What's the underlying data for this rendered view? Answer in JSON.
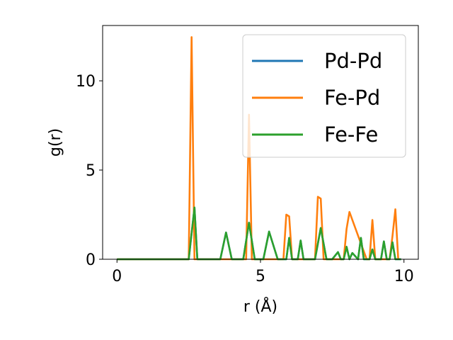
{
  "chart_data": {
    "type": "line",
    "title": "",
    "xlabel": "r (Å)",
    "ylabel": "g(r)",
    "xlim": [
      -0.5,
      10.5
    ],
    "ylim": [
      0,
      13.1
    ],
    "xticks": [
      0,
      5,
      10
    ],
    "yticks": [
      0,
      5,
      10
    ],
    "grid": false,
    "legend_position": "top-right",
    "series": [
      {
        "name": "Pd-Pd",
        "color": "#1f77b4",
        "x": [
          0,
          2.5,
          2.7,
          2.8,
          3.6,
          3.8,
          4.0,
          4.4,
          4.6,
          4.8,
          5.1,
          5.3,
          5.6,
          5.9,
          6.0,
          6.1,
          6.3,
          6.4,
          6.5,
          6.9,
          7.1,
          7.3,
          7.5,
          7.7,
          7.8,
          7.9,
          8.0,
          8.1,
          8.2,
          8.4,
          8.5,
          8.6,
          8.8,
          8.9,
          9.0,
          9.2,
          9.3,
          9.4,
          9.5,
          9.6,
          9.7,
          9.9
        ],
        "y": [
          0,
          0,
          2.9,
          0,
          0,
          1.5,
          0,
          0,
          2.05,
          0,
          0,
          1.55,
          0,
          0,
          1.2,
          0,
          0,
          1.05,
          0,
          0,
          1.75,
          0,
          0,
          0.4,
          0,
          0,
          0.7,
          0,
          0.35,
          0,
          1.2,
          0,
          0,
          0.55,
          0,
          0,
          1.0,
          0,
          0,
          0.95,
          0,
          0
        ]
      },
      {
        "name": "Fe-Pd",
        "color": "#ff7f0e",
        "x": [
          0,
          2.5,
          2.6,
          2.7,
          4.4,
          4.5,
          4.6,
          4.7,
          5.8,
          5.9,
          6.0,
          6.1,
          6.9,
          7.0,
          7.1,
          7.2,
          7.8,
          7.9,
          8.0,
          8.1,
          8.7,
          8.8,
          8.9,
          9.0,
          9.4,
          9.5,
          9.6,
          9.7,
          9.8
        ],
        "y": [
          0,
          0,
          12.45,
          0,
          0,
          0,
          8.1,
          0,
          0,
          2.5,
          2.4,
          0,
          0,
          3.5,
          3.4,
          0,
          0,
          0,
          1.7,
          2.65,
          0,
          0,
          2.2,
          0,
          0,
          0,
          1.3,
          2.8,
          0
        ]
      },
      {
        "name": "Fe-Fe",
        "color": "#2ca02c",
        "x": [
          0,
          2.5,
          2.7,
          2.8,
          3.6,
          3.8,
          4.0,
          4.4,
          4.6,
          4.8,
          5.1,
          5.3,
          5.6,
          5.9,
          6.0,
          6.1,
          6.3,
          6.4,
          6.5,
          6.9,
          7.1,
          7.3,
          7.5,
          7.7,
          7.8,
          7.9,
          8.0,
          8.1,
          8.2,
          8.4,
          8.5,
          8.6,
          8.8,
          8.9,
          9.0,
          9.2,
          9.3,
          9.4,
          9.5,
          9.6,
          9.7,
          9.9
        ],
        "y": [
          0,
          0,
          2.9,
          0,
          0,
          1.5,
          0,
          0,
          2.05,
          0,
          0,
          1.55,
          0,
          0,
          1.2,
          0,
          0,
          1.05,
          0,
          0,
          1.75,
          0,
          0,
          0.4,
          0,
          0,
          0.7,
          0,
          0.35,
          0,
          1.2,
          0,
          0,
          0.55,
          0,
          0,
          1.0,
          0,
          0,
          0.95,
          0,
          0
        ]
      }
    ]
  }
}
